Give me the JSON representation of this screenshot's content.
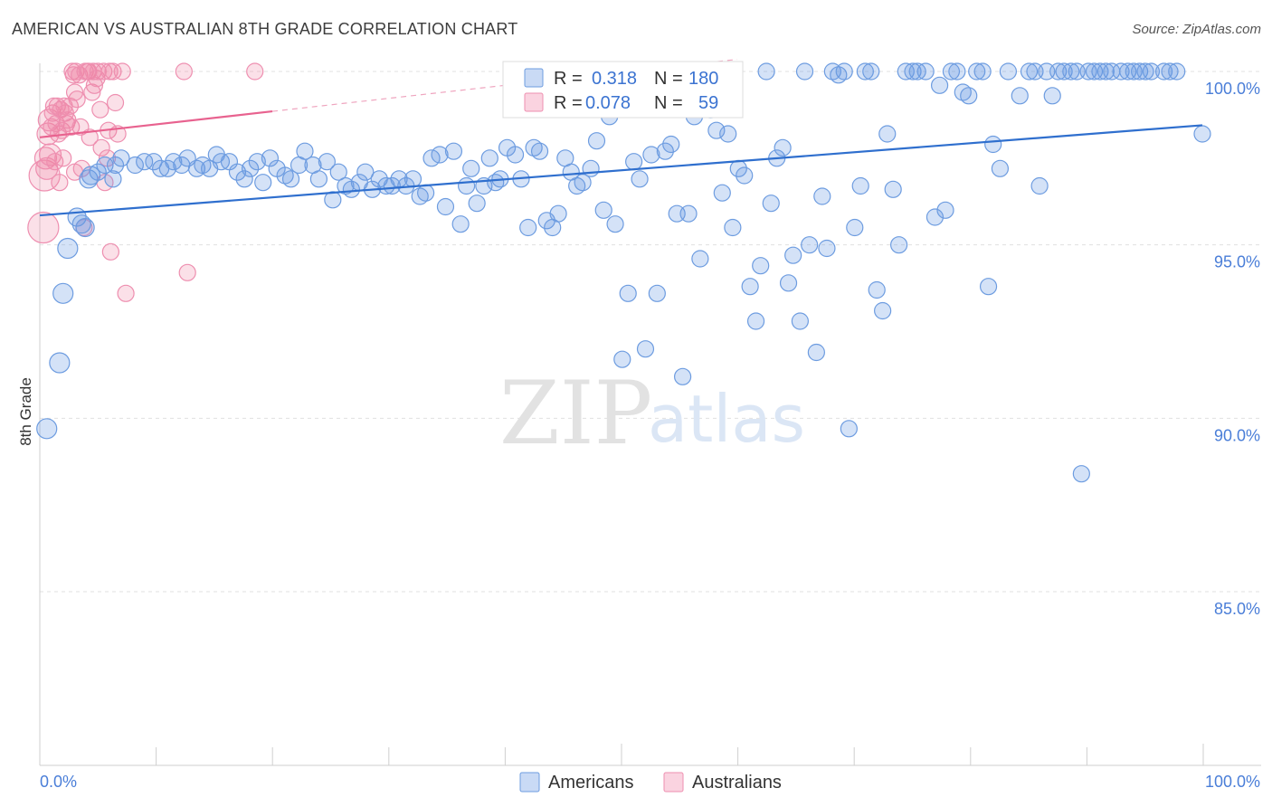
{
  "title": "AMERICAN VS AUSTRALIAN 8TH GRADE CORRELATION CHART",
  "source": "Source: ZipAtlas.com",
  "watermark": {
    "zip": "ZIP",
    "atlas": "atlas"
  },
  "colors": {
    "americans_fill": "rgba(100,150,225,0.28)",
    "americans_stroke": "#6d9ce0",
    "americans_line": "#2f6fce",
    "australians_fill": "rgba(240,130,165,0.25)",
    "australians_stroke": "#ee8fb0",
    "australians_line": "#e8628f",
    "grid": "#e0e0e0",
    "tick_label": "#4a7ed8"
  },
  "legend": {
    "r_label": "R =",
    "n_label": "N =",
    "americans": {
      "r": "0.318",
      "n": "180"
    },
    "australians": {
      "r": "0.078",
      "n": "59"
    }
  },
  "chart_data": {
    "type": "scatter",
    "title": "AMERICAN VS AUSTRALIAN 8TH GRADE CORRELATION CHART",
    "xlabel": "",
    "ylabel": "8th Grade",
    "xlim": [
      0,
      100
    ],
    "ylim": [
      80.5,
      100.8
    ],
    "x_tick_labels": [
      "0.0%",
      "100.0%"
    ],
    "y_ticks": [
      {
        "value": 100,
        "label": "100.0%"
      },
      {
        "value": 95,
        "label": "95.0%"
      },
      {
        "value": 90,
        "label": "90.0%"
      },
      {
        "value": 85,
        "label": "85.0%"
      }
    ],
    "legend_placement": "top-center",
    "series": [
      {
        "name": "Americans",
        "r": 0.318,
        "n": 180,
        "trend": {
          "x": [
            0,
            100
          ],
          "y": [
            95.85,
            98.45
          ]
        },
        "points": [
          [
            0.6,
            89.7
          ],
          [
            1.7,
            91.6
          ],
          [
            2.0,
            93.6
          ],
          [
            2.4,
            94.9
          ],
          [
            3.2,
            95.8
          ],
          [
            3.6,
            95.6
          ],
          [
            3.9,
            95.5
          ],
          [
            4.2,
            96.9
          ],
          [
            4.4,
            97.0
          ],
          [
            5.0,
            97.1
          ],
          [
            5.6,
            97.3
          ],
          [
            6.3,
            96.9
          ],
          [
            6.5,
            97.3
          ],
          [
            7.0,
            97.5
          ],
          [
            8.2,
            97.3
          ],
          [
            9.0,
            97.4
          ],
          [
            9.8,
            97.4
          ],
          [
            10.4,
            97.2
          ],
          [
            11.0,
            97.2
          ],
          [
            11.5,
            97.4
          ],
          [
            12.2,
            97.3
          ],
          [
            12.7,
            97.5
          ],
          [
            13.5,
            97.2
          ],
          [
            14.0,
            97.3
          ],
          [
            14.6,
            97.2
          ],
          [
            15.2,
            97.6
          ],
          [
            15.6,
            97.4
          ],
          [
            16.3,
            97.4
          ],
          [
            17.0,
            97.1
          ],
          [
            17.6,
            96.9
          ],
          [
            18.1,
            97.2
          ],
          [
            18.7,
            97.4
          ],
          [
            19.2,
            96.8
          ],
          [
            19.8,
            97.5
          ],
          [
            20.4,
            97.2
          ],
          [
            21.1,
            97.0
          ],
          [
            21.6,
            96.9
          ],
          [
            22.3,
            97.3
          ],
          [
            22.8,
            97.7
          ],
          [
            23.5,
            97.3
          ],
          [
            24.0,
            96.9
          ],
          [
            24.7,
            97.4
          ],
          [
            25.2,
            96.3
          ],
          [
            25.7,
            97.1
          ],
          [
            26.3,
            96.7
          ],
          [
            26.8,
            96.6
          ],
          [
            27.5,
            96.8
          ],
          [
            28.0,
            97.1
          ],
          [
            28.6,
            96.6
          ],
          [
            29.2,
            96.9
          ],
          [
            29.8,
            96.7
          ],
          [
            30.3,
            96.7
          ],
          [
            30.9,
            96.9
          ],
          [
            31.5,
            96.7
          ],
          [
            32.1,
            96.9
          ],
          [
            32.7,
            96.4
          ],
          [
            33.2,
            96.5
          ],
          [
            33.7,
            97.5
          ],
          [
            34.4,
            97.6
          ],
          [
            34.9,
            96.1
          ],
          [
            35.6,
            97.7
          ],
          [
            36.2,
            95.6
          ],
          [
            36.7,
            96.7
          ],
          [
            37.1,
            97.2
          ],
          [
            37.6,
            96.2
          ],
          [
            38.2,
            96.7
          ],
          [
            38.7,
            97.5
          ],
          [
            39.2,
            96.8
          ],
          [
            39.6,
            96.9
          ],
          [
            40.2,
            97.8
          ],
          [
            40.9,
            97.6
          ],
          [
            41.4,
            96.9
          ],
          [
            42.0,
            95.5
          ],
          [
            42.5,
            97.8
          ],
          [
            43.0,
            97.7
          ],
          [
            43.6,
            95.7
          ],
          [
            44.1,
            95.5
          ],
          [
            44.6,
            95.9
          ],
          [
            45.2,
            97.5
          ],
          [
            45.7,
            97.1
          ],
          [
            46.2,
            96.7
          ],
          [
            46.7,
            96.8
          ],
          [
            47.4,
            97.2
          ],
          [
            47.9,
            98.0
          ],
          [
            48.5,
            96.0
          ],
          [
            49.0,
            98.7
          ],
          [
            49.5,
            95.6
          ],
          [
            50.1,
            91.7
          ],
          [
            50.6,
            93.6
          ],
          [
            51.1,
            97.4
          ],
          [
            51.6,
            96.9
          ],
          [
            52.1,
            92.0
          ],
          [
            52.6,
            97.6
          ],
          [
            53.1,
            93.6
          ],
          [
            53.8,
            97.7
          ],
          [
            54.3,
            97.9
          ],
          [
            54.8,
            95.9
          ],
          [
            55.3,
            91.2
          ],
          [
            55.8,
            95.9
          ],
          [
            56.3,
            98.7
          ],
          [
            56.8,
            94.6
          ],
          [
            57.3,
            99.0
          ],
          [
            57.7,
            98.9
          ],
          [
            58.2,
            98.3
          ],
          [
            58.7,
            96.5
          ],
          [
            59.2,
            98.2
          ],
          [
            59.6,
            95.5
          ],
          [
            60.1,
            97.2
          ],
          [
            60.6,
            97.0
          ],
          [
            61.1,
            93.8
          ],
          [
            61.6,
            92.8
          ],
          [
            62.0,
            94.4
          ],
          [
            62.5,
            100.0
          ],
          [
            62.9,
            96.2
          ],
          [
            63.4,
            97.5
          ],
          [
            63.9,
            97.8
          ],
          [
            64.4,
            93.9
          ],
          [
            64.8,
            94.7
          ],
          [
            65.4,
            92.8
          ],
          [
            65.8,
            100.0
          ],
          [
            66.2,
            95.0
          ],
          [
            66.8,
            91.9
          ],
          [
            67.3,
            96.4
          ],
          [
            67.7,
            94.9
          ],
          [
            68.2,
            100.0
          ],
          [
            68.7,
            99.9
          ],
          [
            69.2,
            100.0
          ],
          [
            69.6,
            89.7
          ],
          [
            70.1,
            95.5
          ],
          [
            70.6,
            96.7
          ],
          [
            71.0,
            100.0
          ],
          [
            71.5,
            100.0
          ],
          [
            72.0,
            93.7
          ],
          [
            72.5,
            93.1
          ],
          [
            72.9,
            98.2
          ],
          [
            73.4,
            96.6
          ],
          [
            73.9,
            95.0
          ],
          [
            74.5,
            100.0
          ],
          [
            75.1,
            100.0
          ],
          [
            75.5,
            100.0
          ],
          [
            76.2,
            100.0
          ],
          [
            77.0,
            95.8
          ],
          [
            77.4,
            99.6
          ],
          [
            77.9,
            96.0
          ],
          [
            78.4,
            100.0
          ],
          [
            78.9,
            100.0
          ],
          [
            79.4,
            99.4
          ],
          [
            79.9,
            99.3
          ],
          [
            80.6,
            100.0
          ],
          [
            81.1,
            100.0
          ],
          [
            81.6,
            93.8
          ],
          [
            82.0,
            97.9
          ],
          [
            82.6,
            97.2
          ],
          [
            83.3,
            100.0
          ],
          [
            84.3,
            99.3
          ],
          [
            85.1,
            100.0
          ],
          [
            85.6,
            100.0
          ],
          [
            86.0,
            96.7
          ],
          [
            86.6,
            100.0
          ],
          [
            87.1,
            99.3
          ],
          [
            87.6,
            100.0
          ],
          [
            88.1,
            100.0
          ],
          [
            88.7,
            100.0
          ],
          [
            89.2,
            100.0
          ],
          [
            89.6,
            88.4
          ],
          [
            90.2,
            100.0
          ],
          [
            90.7,
            100.0
          ],
          [
            91.2,
            100.0
          ],
          [
            91.7,
            100.0
          ],
          [
            92.2,
            100.0
          ],
          [
            93.0,
            100.0
          ],
          [
            93.6,
            100.0
          ],
          [
            94.1,
            100.0
          ],
          [
            94.6,
            100.0
          ],
          [
            95.1,
            100.0
          ],
          [
            95.6,
            100.0
          ],
          [
            96.7,
            100.0
          ],
          [
            97.2,
            100.0
          ],
          [
            97.8,
            100.0
          ],
          [
            100.0,
            98.2
          ]
        ]
      },
      {
        "name": "Australians",
        "r": 0.078,
        "n": 59,
        "trend": {
          "x": [
            0,
            20
          ],
          "y": [
            98.1,
            98.85
          ]
        },
        "points": [
          [
            0.3,
            95.5
          ],
          [
            0.4,
            97.0
          ],
          [
            0.5,
            97.5
          ],
          [
            0.6,
            97.2
          ],
          [
            0.7,
            98.2
          ],
          [
            0.8,
            98.6
          ],
          [
            0.9,
            97.6
          ],
          [
            1.0,
            98.4
          ],
          [
            1.1,
            98.8
          ],
          [
            1.2,
            99.0
          ],
          [
            1.3,
            97.4
          ],
          [
            1.4,
            98.5
          ],
          [
            1.5,
            99.0
          ],
          [
            1.6,
            98.2
          ],
          [
            1.7,
            96.8
          ],
          [
            1.8,
            98.9
          ],
          [
            1.9,
            98.3
          ],
          [
            2.0,
            97.5
          ],
          [
            2.1,
            99.0
          ],
          [
            2.2,
            98.8
          ],
          [
            2.3,
            98.5
          ],
          [
            2.4,
            98.6
          ],
          [
            2.6,
            99.0
          ],
          [
            2.7,
            98.4
          ],
          [
            2.8,
            100.0
          ],
          [
            2.9,
            99.9
          ],
          [
            3.0,
            97.1
          ],
          [
            3.1,
            100.0
          ],
          [
            3.2,
            99.2
          ],
          [
            3.4,
            99.9
          ],
          [
            3.5,
            98.4
          ],
          [
            3.6,
            97.2
          ],
          [
            3.8,
            95.5
          ],
          [
            3.9,
            100.0
          ],
          [
            4.1,
            100.0
          ],
          [
            4.2,
            100.0
          ],
          [
            4.3,
            98.1
          ],
          [
            4.5,
            99.4
          ],
          [
            4.6,
            100.0
          ],
          [
            4.7,
            99.6
          ],
          [
            4.9,
            99.8
          ],
          [
            5.0,
            100.0
          ],
          [
            5.2,
            98.9
          ],
          [
            5.3,
            97.8
          ],
          [
            5.5,
            100.0
          ],
          [
            5.6,
            96.8
          ],
          [
            5.8,
            97.5
          ],
          [
            5.9,
            98.3
          ],
          [
            6.0,
            100.0
          ],
          [
            6.1,
            94.8
          ],
          [
            6.3,
            100.0
          ],
          [
            6.5,
            99.1
          ],
          [
            6.7,
            98.2
          ],
          [
            7.1,
            100.0
          ],
          [
            7.4,
            93.6
          ],
          [
            12.4,
            100.0
          ],
          [
            12.7,
            94.2
          ],
          [
            18.5,
            100.0
          ],
          [
            3.0,
            99.4
          ]
        ]
      }
    ]
  },
  "bottom_legend": {
    "americans": "Americans",
    "australians": "Australians"
  }
}
